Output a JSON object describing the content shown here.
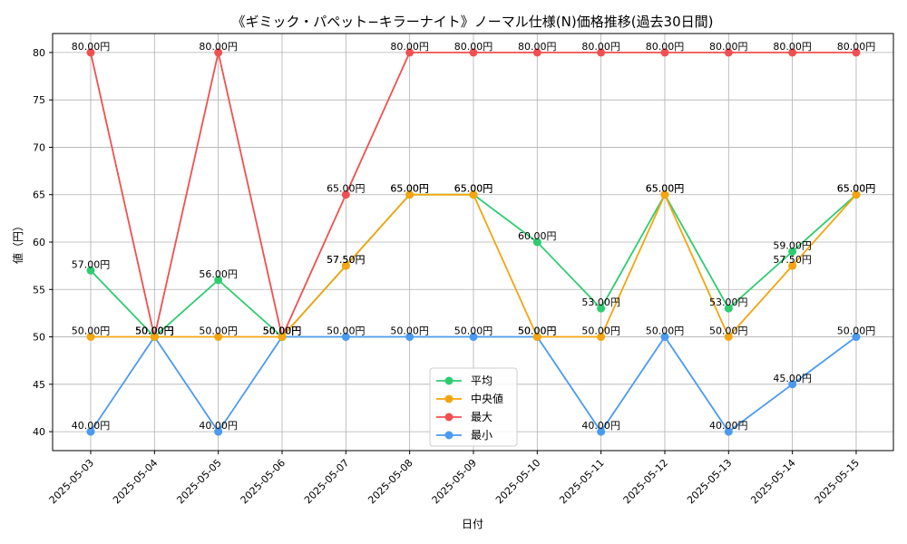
{
  "chart_data": {
    "type": "line",
    "title": "《ギミック・パペット−キラーナイト》ノーマル仕様(N)価格推移(過去30日間)",
    "xlabel": "日付",
    "ylabel": "値（円）",
    "ylim": [
      38,
      82
    ],
    "yticks": [
      40,
      45,
      50,
      55,
      60,
      65,
      70,
      75,
      80
    ],
    "grid": true,
    "legend_position": "bottom-center",
    "label_suffix": "円",
    "categories": [
      "2025-05-03",
      "2025-05-04",
      "2025-05-05",
      "2025-05-06",
      "2025-05-07",
      "2025-05-08",
      "2025-05-09",
      "2025-05-10",
      "2025-05-11",
      "2025-05-12",
      "2025-05-13",
      "2025-05-14",
      "2025-05-15"
    ],
    "series": [
      {
        "name": "平均",
        "color": "#2ecc71",
        "values": [
          57,
          50,
          56,
          50,
          57.5,
          65,
          65,
          60,
          53,
          65,
          53,
          59,
          65
        ]
      },
      {
        "name": "中央値",
        "color": "#f5a50f",
        "values": [
          50,
          50,
          50,
          50,
          57.5,
          65,
          65,
          50,
          50,
          65,
          50,
          57.5,
          65
        ]
      },
      {
        "name": "最大",
        "color": "#f05050",
        "values": [
          80,
          50,
          80,
          50,
          65,
          80,
          80,
          80,
          80,
          80,
          80,
          80,
          80
        ]
      },
      {
        "name": "最小",
        "color": "#4a9af0",
        "values": [
          40,
          50,
          40,
          50,
          50,
          50,
          50,
          50,
          40,
          50,
          40,
          45,
          50
        ]
      }
    ]
  }
}
